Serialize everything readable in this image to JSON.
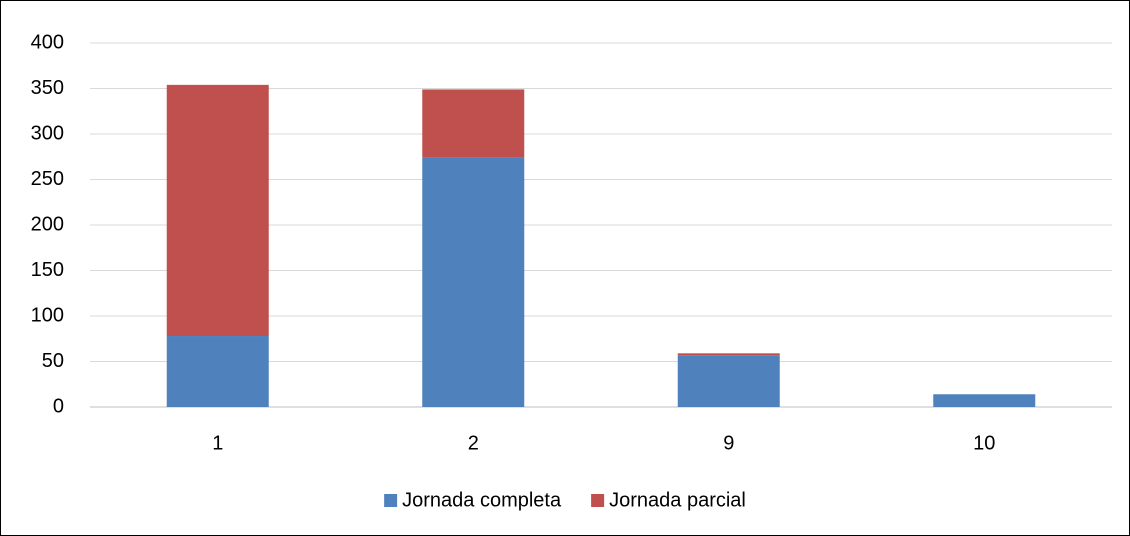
{
  "chart_data": {
    "type": "bar",
    "stacked": true,
    "categories": [
      "1",
      "2",
      "9",
      "10"
    ],
    "series": [
      {
        "name": "Jornada completa",
        "color": "#4f81bd",
        "values": [
          78,
          274,
          57,
          14
        ]
      },
      {
        "name": "Jornada parcial",
        "color": "#c0504d",
        "values": [
          276,
          75,
          2,
          0
        ]
      }
    ],
    "ylim": [
      0,
      400
    ],
    "yticks": [
      0,
      50,
      100,
      150,
      200,
      250,
      300,
      350,
      400
    ],
    "grid": true,
    "legend": "bottom"
  }
}
